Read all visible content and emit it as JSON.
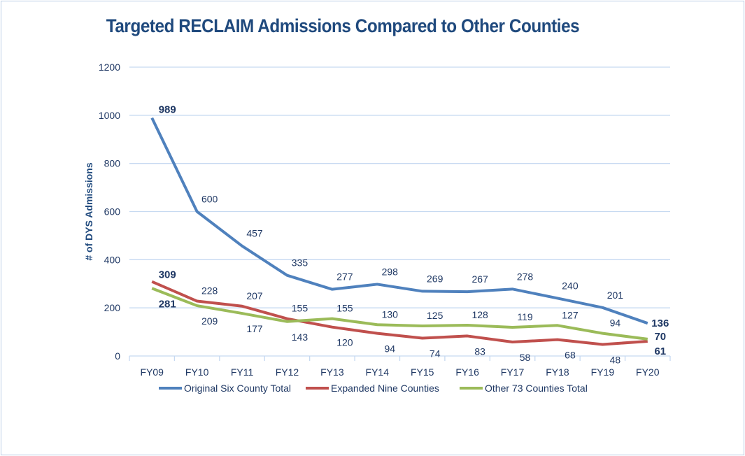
{
  "chart_data": {
    "type": "line",
    "title": "Targeted RECLAIM Admissions Compared to Other Counties",
    "xlabel": "",
    "ylabel": "# of DYS Admissions",
    "categories": [
      "FY09",
      "FY10",
      "FY11",
      "FY12",
      "FY13",
      "FY14",
      "FY15",
      "FY16",
      "FY17",
      "FY18",
      "FY19",
      "FY20"
    ],
    "ylim": [
      0,
      1200
    ],
    "yticks": [
      0,
      200,
      400,
      600,
      800,
      1000,
      1200
    ],
    "grid": true,
    "legend": "bottom",
    "series": [
      {
        "name": "Original Six County Total",
        "color": "#4f81bd",
        "values": [
          989,
          600,
          457,
          335,
          277,
          298,
          269,
          267,
          278,
          240,
          201,
          136
        ]
      },
      {
        "name": "Expanded Nine Counties",
        "color": "#c0504d",
        "values": [
          309,
          228,
          207,
          155,
          120,
          94,
          74,
          83,
          58,
          68,
          48,
          61
        ]
      },
      {
        "name": "Other 73 Counties Total",
        "color": "#9bbb59",
        "values": [
          281,
          209,
          177,
          143,
          155,
          130,
          125,
          128,
          119,
          127,
          94,
          70
        ]
      }
    ]
  }
}
